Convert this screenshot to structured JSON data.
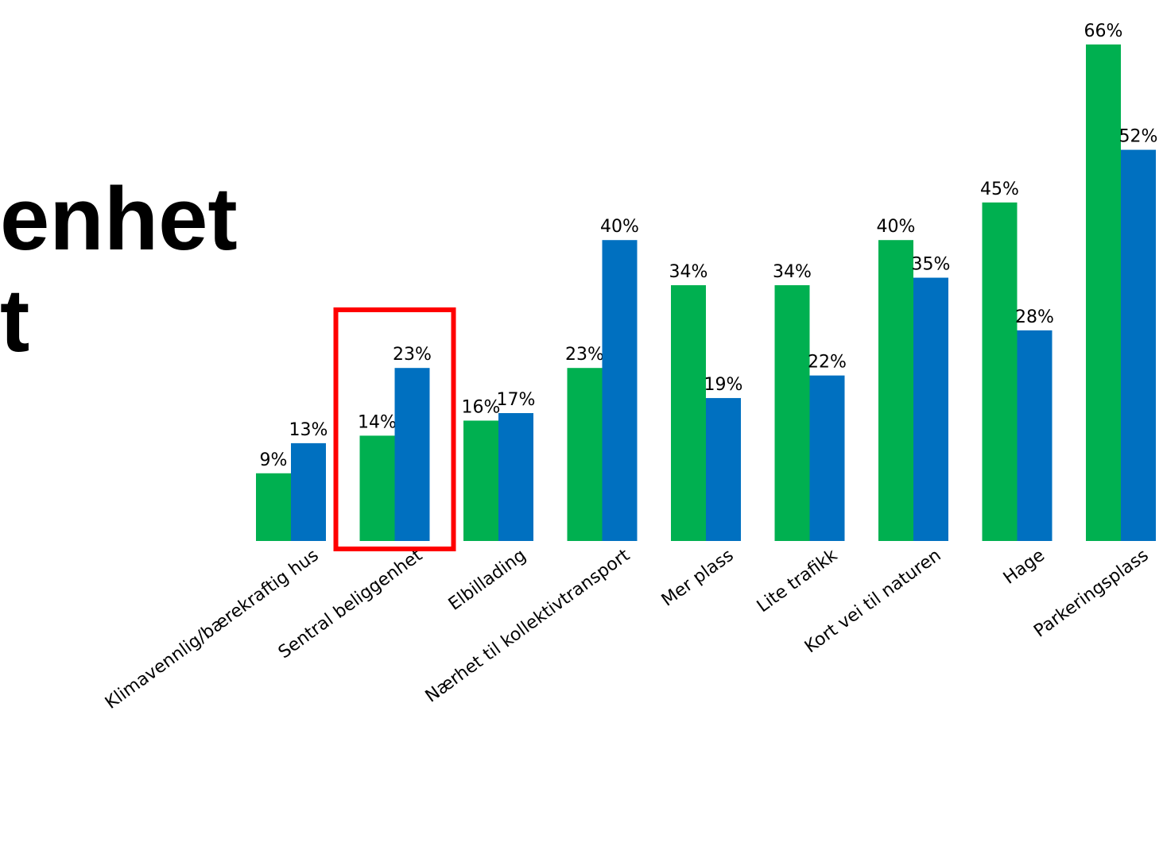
{
  "title_fragment": {
    "line1": "enhet",
    "line2": "t"
  },
  "chart_data": {
    "type": "bar",
    "categories": [
      "Klimavennlig/bærekraftig hus",
      "Sentral beliggenhet",
      "Elbillading",
      "Nærhet til kollektivtransport",
      "Mer plass",
      "Lite trafikk",
      "Kort vei til naturen",
      "Hage",
      "Parkeringsplass"
    ],
    "series": [
      {
        "color": "#00b050",
        "values": [
          9,
          14,
          16,
          23,
          34,
          34,
          40,
          45,
          66
        ],
        "labels": [
          "9%",
          "14%",
          "16%",
          "23%",
          "34%",
          "34%",
          "40%",
          "45%",
          "66%"
        ]
      },
      {
        "color": "#0070c0",
        "values": [
          13,
          23,
          17,
          40,
          19,
          22,
          35,
          28,
          52
        ],
        "labels": [
          "13%",
          "23%",
          "17%",
          "40%",
          "19%",
          "22%",
          "35%",
          "28%",
          "52%"
        ]
      }
    ],
    "ylim": [
      0,
      66
    ],
    "grid": false,
    "highlight": {
      "category": "Sentral beliggenhet",
      "color": "#ff0000"
    }
  }
}
